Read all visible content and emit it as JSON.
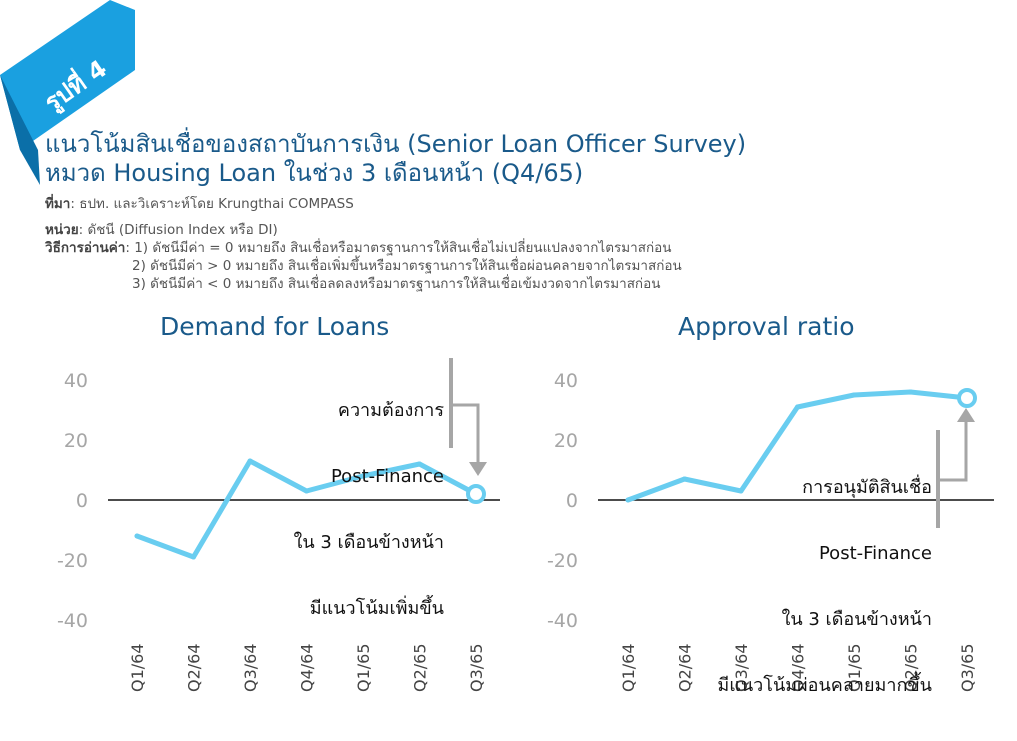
{
  "badge": "รูปที่ 4",
  "title_line1": "แนวโน้มสินเชื่อของสถาบันการเงิน (Senior Loan Officer Survey)",
  "title_line2": "หมวด Housing Loan ในช่วง 3 เดือนหน้า (Q4/65)",
  "source_label": "ที่มา",
  "source_text": ": ธปท. และวิเคราะห์โดย Krungthai COMPASS",
  "unit_label": "หน่วย",
  "unit_text": ": ดัชนี (Diffusion Index หรือ DI)",
  "method_label": "วิธีการอ่านค่า",
  "method_lines": [
    ": 1) ดัชนีมีค่า = 0 หมายถึง สินเชื่อหรือมาตรฐานการให้สินเชื่อไม่เปลี่ยนแปลงจากไตรมาสก่อน",
    "2) ดัชนีมีค่า > 0 หมายถึง สินเชื่อเพิ่มขึ้นหรือมาตรฐานการให้สินเชื่อผ่อนคลายจากไตรมาสก่อน",
    "3) ดัชนีมีค่า < 0 หมายถึง สินเชื่อลดลงหรือมาตรฐานการให้สินเชื่อเข้มงวดจากไตรมาสก่อน"
  ],
  "colors": {
    "line": "#69cdf0",
    "title": "#1a5a8a",
    "arrow": "#a6a6a6",
    "tick": "#a6a6a6",
    "ribbon": "#1aa0e0"
  },
  "chart_data": [
    {
      "type": "line",
      "title": "Demand for Loans",
      "categories": [
        "Q1/64",
        "Q2/64",
        "Q3/64",
        "Q4/64",
        "Q1/65",
        "Q2/65",
        "Q3/65"
      ],
      "values": [
        -12,
        -19,
        13,
        3,
        8,
        12,
        2
      ],
      "ylim": [
        -40,
        40
      ],
      "yticks": [
        "40",
        "20",
        "0",
        "-20",
        "-40"
      ],
      "highlight_last": true,
      "annotation": [
        "ความต้องการ",
        "Post-Finance",
        "ใน 3 เดือนข้างหน้า",
        "มีแนวโน้มเพิ่มขึ้น"
      ]
    },
    {
      "type": "line",
      "title": "Approval ratio",
      "categories": [
        "Q1/64",
        "Q2/64",
        "Q3/64",
        "Q4/64",
        "Q1/65",
        "Q2/65",
        "Q3/65"
      ],
      "values": [
        0,
        7,
        3,
        31,
        35,
        36,
        34
      ],
      "ylim": [
        -40,
        40
      ],
      "yticks": [
        "40",
        "20",
        "0",
        "-20",
        "-40"
      ],
      "highlight_last": true,
      "annotation": [
        "การอนุมัติสินเชื่อ",
        "Post-Finance",
        "ใน 3 เดือนข้างหน้า",
        "มีแนวโน้มผ่อนคลายมากขึ้น"
      ]
    }
  ]
}
